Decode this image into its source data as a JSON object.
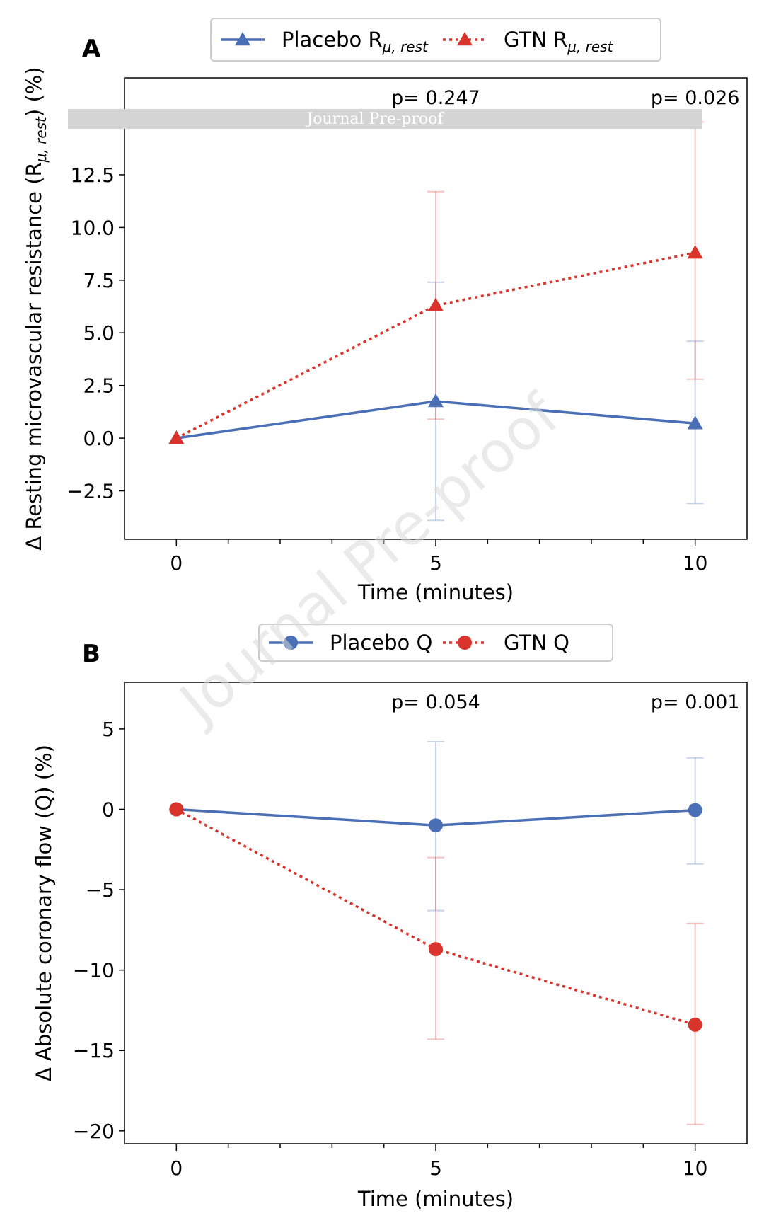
{
  "banner": {
    "text": "Journal Pre-proof"
  },
  "watermark": {
    "text": "Journal Pre-proof"
  },
  "chart_data": [
    {
      "type": "line",
      "panel": "A",
      "xlabel": "Time (minutes)",
      "ylabel_main": "Δ Resting microvascular resistance (R",
      "ylabel_sub": "μ, rest",
      "ylabel_end": ") (%)",
      "xlim": [
        -1,
        11
      ],
      "ylim": [
        -4.8,
        17.1
      ],
      "xticks": [
        0,
        5,
        10
      ],
      "xtick_labels": [
        "0",
        "5",
        "10"
      ],
      "minor_xticks": [
        1,
        2,
        3,
        4,
        6,
        7,
        8,
        9
      ],
      "yticks": [
        -2.5,
        0,
        2.5,
        5,
        7.5,
        10,
        12.5
      ],
      "ytick_labels": [
        "−2.5",
        "0.0",
        "2.5",
        "5.0",
        "7.5",
        "10.0",
        "12.5"
      ],
      "x": [
        0,
        5,
        10
      ],
      "marker": "triangle",
      "legend_position": "top-center",
      "series": [
        {
          "name_main": "Placebo R",
          "name_sub": "μ, rest",
          "color": "#4a6fb5",
          "style": "solid",
          "values": [
            0,
            1.75,
            0.7
          ],
          "err_low": [
            0,
            -3.9,
            -3.1
          ],
          "err_high": [
            0,
            7.4,
            4.6
          ]
        },
        {
          "name_main": "GTN R",
          "name_sub": "μ, rest",
          "color": "#d9342b",
          "style": "dotted",
          "values": [
            0,
            6.3,
            8.8
          ],
          "err_low": [
            0,
            0.9,
            2.8
          ],
          "err_high": [
            0,
            11.7,
            15.0
          ]
        }
      ],
      "annotations": [
        {
          "x": 5,
          "text": "p= 0.247"
        },
        {
          "x": 10,
          "text": "p= 0.026"
        }
      ]
    },
    {
      "type": "line",
      "panel": "B",
      "xlabel": "Time (minutes)",
      "ylabel_main": "Δ Absolute coronary flow (Q) (%)",
      "ylabel_sub": "",
      "ylabel_end": "",
      "xlim": [
        -1,
        11
      ],
      "ylim": [
        -20.8,
        7.9
      ],
      "xticks": [
        0,
        5,
        10
      ],
      "xtick_labels": [
        "0",
        "5",
        "10"
      ],
      "minor_xticks": [
        1,
        2,
        3,
        4,
        6,
        7,
        8,
        9
      ],
      "yticks": [
        -20,
        -15,
        -10,
        -5,
        0,
        5
      ],
      "ytick_labels": [
        "−20",
        "−15",
        "−10",
        "−5",
        "0",
        "5"
      ],
      "x": [
        0,
        5,
        10
      ],
      "marker": "circle",
      "legend_position": "top-center",
      "series": [
        {
          "name_main": "Placebo Q",
          "name_sub": "",
          "color": "#4a6fb5",
          "style": "solid",
          "values": [
            0,
            -1.0,
            -0.05
          ],
          "err_low": [
            0,
            -6.3,
            -3.4
          ],
          "err_high": [
            0,
            4.2,
            3.2
          ]
        },
        {
          "name_main": "GTN Q",
          "name_sub": "",
          "color": "#d9342b",
          "style": "dotted",
          "values": [
            0,
            -8.7,
            -13.4
          ],
          "err_low": [
            0,
            -14.3,
            -19.6
          ],
          "err_high": [
            0,
            -3.0,
            -7.1
          ]
        }
      ],
      "annotations": [
        {
          "x": 5,
          "text": "p= 0.054"
        },
        {
          "x": 10,
          "text": "p= 0.001"
        }
      ]
    }
  ]
}
